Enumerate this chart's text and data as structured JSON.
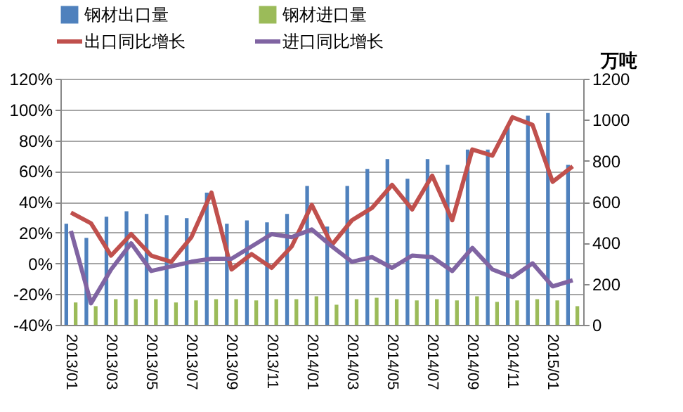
{
  "chart_data": {
    "type": "bar",
    "y2label": "万吨",
    "categories": [
      "2013/01",
      null,
      "2013/03",
      null,
      "2013/05",
      null,
      "2013/07",
      null,
      "2013/09",
      null,
      "2013/11",
      null,
      "2014/01",
      null,
      "2014/03",
      null,
      "2014/05",
      null,
      "2014/07",
      null,
      "2014/09",
      null,
      "2014/11",
      null,
      "2015/01",
      null
    ],
    "series": [
      {
        "name": "钢材出口量",
        "axis": "y2",
        "color": "#4f81bd",
        "values": [
          493,
          424,
          527,
          554,
          541,
          534,
          520,
          645,
          493,
          509,
          500,
          541,
          677,
          479,
          677,
          760,
          808,
          712,
          808,
          780,
          855,
          855,
          965,
          1020,
          1033,
          780
        ]
      },
      {
        "name": "钢材进口量",
        "axis": "y2",
        "color": "#9bbb59",
        "values": [
          109,
          91,
          125,
          125,
          125,
          109,
          119,
          125,
          125,
          119,
          125,
          125,
          139,
          98,
          125,
          132,
          125,
          119,
          125,
          119,
          139,
          112,
          119,
          125,
          119,
          91
        ]
      },
      {
        "name": "出口同比增长",
        "type": "line",
        "color": "#c0504d",
        "values": [
          33,
          26,
          5,
          19,
          5,
          1,
          17,
          46,
          -4,
          6,
          -3,
          11,
          38,
          12,
          28,
          36,
          51,
          35,
          57,
          28,
          74,
          70,
          95,
          90,
          53,
          63
        ]
      },
      {
        "name": "进口同比增长",
        "type": "line",
        "color": "#8064a2",
        "values": [
          21,
          -26,
          -4,
          13,
          -5,
          -2,
          1,
          3,
          3,
          11,
          19,
          17,
          22,
          11,
          1,
          4,
          -3,
          5,
          4,
          -5,
          10,
          -4,
          -9,
          0,
          -15,
          -11
        ]
      }
    ],
    "ylim": [
      -40,
      120
    ],
    "yticks": [
      {
        "value": -40,
        "label": "-40%"
      },
      {
        "value": -20,
        "label": "-20%"
      },
      {
        "value": 0,
        "label": "0%"
      },
      {
        "value": 20,
        "label": "20%"
      },
      {
        "value": 40,
        "label": "40%"
      },
      {
        "value": 60,
        "label": "60%"
      },
      {
        "value": 80,
        "label": "80%"
      },
      {
        "value": 100,
        "label": "100%"
      },
      {
        "value": 120,
        "label": "120%"
      }
    ],
    "y2lim": [
      0,
      1200
    ],
    "y2ticks": [
      0,
      200,
      400,
      600,
      800,
      1000,
      1200
    ],
    "grid": "y",
    "legend": "top"
  }
}
